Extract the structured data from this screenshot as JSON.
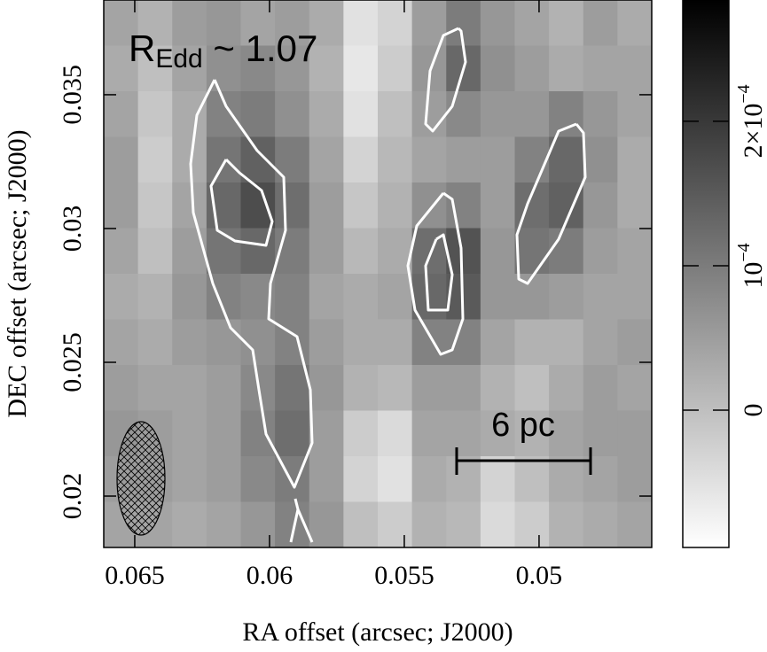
{
  "chart_data": {
    "type": "heatmap",
    "annotation": {
      "main": "R",
      "subscript": "Edd",
      "rest": " ~ 1.07"
    },
    "scale_bar_label": "6 pc",
    "xlabel": "RA offset (arcsec; J2000)",
    "ylabel": "DEC offset (arcsec; J2000)",
    "xlim": [
      0.06615,
      0.04582
    ],
    "xticks": [
      0.065,
      0.06,
      0.055,
      0.05
    ],
    "ylim": [
      0.01808,
      0.03854
    ],
    "yticks": [
      0.02,
      0.025,
      0.03,
      0.035
    ],
    "zlim": [
      -9.51e-05,
      0.000284
    ],
    "zticks": [
      0,
      {
        "value": 0.0001,
        "label": "10",
        "exponent": "−4"
      },
      {
        "value": 0.0002,
        "label": "2×10",
        "exponent": "−4"
      }
    ],
    "z": [
      [
        4e-05,
        2e-05,
        5e-05,
        6e-05,
        4e-05,
        5e-05,
        3e-05,
        -5e-05,
        -3e-05,
        5e-05,
        0.0001,
        6e-05,
        4e-05,
        2e-05,
        5e-05,
        3e-05
      ],
      [
        3e-05,
        0.0,
        4e-05,
        7e-05,
        8e-05,
        6e-05,
        2e-05,
        -6e-05,
        -2e-05,
        6e-05,
        0.00013,
        7e-05,
        5e-05,
        3e-05,
        4e-05,
        4e-05
      ],
      [
        4e-05,
        -1e-05,
        3e-05,
        9e-05,
        0.0001,
        7e-05,
        3e-05,
        -5e-05,
        0.0,
        5e-05,
        8e-05,
        6e-05,
        6e-05,
        9e-05,
        6e-05,
        4e-05
      ],
      [
        5e-05,
        -2e-05,
        3e-05,
        0.00011,
        0.00014,
        0.0001,
        4e-05,
        -3e-05,
        1e-05,
        4e-05,
        5e-05,
        5e-05,
        9e-05,
        0.00013,
        7e-05,
        3e-05
      ],
      [
        5e-05,
        -1e-05,
        4e-05,
        0.00013,
        0.00017,
        0.00012,
        5e-05,
        -1e-05,
        2e-05,
        7e-05,
        9e-05,
        5e-05,
        0.00012,
        0.00014,
        6e-05,
        3e-05
      ],
      [
        4e-05,
        0.0,
        5e-05,
        0.00011,
        0.00013,
        0.0001,
        5e-05,
        1e-05,
        3e-05,
        0.00012,
        0.00016,
        6e-05,
        0.00011,
        0.0001,
        5e-05,
        4e-05
      ],
      [
        3e-05,
        2e-05,
        6e-05,
        9e-05,
        8e-05,
        9e-05,
        4e-05,
        3e-05,
        4e-05,
        0.00013,
        0.00015,
        6e-05,
        6e-05,
        5e-05,
        4e-05,
        4e-05
      ],
      [
        4e-05,
        3e-05,
        5e-05,
        6e-05,
        7e-05,
        9e-05,
        5e-05,
        3e-05,
        3e-05,
        9e-05,
        9e-05,
        4e-05,
        2e-05,
        2e-05,
        4e-05,
        5e-05
      ],
      [
        5e-05,
        4e-05,
        4e-05,
        5e-05,
        8e-05,
        0.00011,
        6e-05,
        2e-05,
        1e-05,
        5e-05,
        5e-05,
        2e-05,
        0.0,
        3e-05,
        5e-05,
        4e-05
      ],
      [
        6e-05,
        5e-05,
        4e-05,
        5e-05,
        9e-05,
        0.00012,
        5e-05,
        -2e-05,
        -4e-05,
        4e-05,
        4e-05,
        3e-05,
        2e-05,
        4e-05,
        5e-05,
        5e-05
      ],
      [
        5e-05,
        5e-05,
        4e-05,
        5e-05,
        8e-05,
        0.0001,
        5e-05,
        -3e-05,
        -5e-05,
        3e-05,
        2e-05,
        -3e-05,
        0.0,
        3e-05,
        4e-05,
        5e-05
      ],
      [
        4e-05,
        4e-05,
        3e-05,
        4e-05,
        6e-05,
        9e-05,
        6e-05,
        0.0,
        -2e-05,
        2e-05,
        1e-05,
        -4e-05,
        -2e-05,
        2e-05,
        3e-05,
        4e-05
      ]
    ]
  }
}
